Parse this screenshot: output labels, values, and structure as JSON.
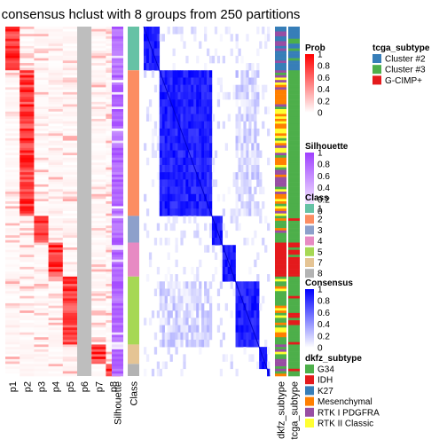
{
  "chart_data": {
    "type": "heatmap",
    "title": "consensus hclust with 8 groups from 250 partitions",
    "n_samples": 144,
    "membership_columns": [
      "p1",
      "p2",
      "p3",
      "p4",
      "p5",
      "p6",
      "p7",
      "p8"
    ],
    "annotation_columns": [
      "Silhouette",
      "Class"
    ],
    "consensus_annotation_columns": [
      "dkfz_subtype",
      "tcga_subtype"
    ],
    "groups": [
      {
        "class": "1",
        "size": 18
      },
      {
        "class": "2",
        "size": 60
      },
      {
        "class": "3",
        "size": 11
      },
      {
        "class": "4",
        "size": 14
      },
      {
        "class": "5",
        "size": 28
      },
      {
        "class": "7",
        "size": 8
      },
      {
        "class": "8",
        "size": 5
      }
    ],
    "legends": {
      "prob": {
        "title": "Prob",
        "ticks": [
          "1",
          "0.8",
          "0.6",
          "0.4",
          "0.2",
          "0"
        ],
        "low": "#ffffff",
        "high": "#ff0000"
      },
      "silhouette": {
        "title": "Silhouette",
        "ticks": [
          "1",
          "0.8",
          "0.6",
          "0.4",
          "0.2",
          "0"
        ],
        "low": "#ffffff",
        "high": "#9f40ff"
      },
      "class": {
        "title": "Class",
        "items": [
          {
            "label": "1",
            "color": "#66C2A5"
          },
          {
            "label": "2",
            "color": "#FC8D62"
          },
          {
            "label": "3",
            "color": "#8DA0CB"
          },
          {
            "label": "4",
            "color": "#E78AC3"
          },
          {
            "label": "5",
            "color": "#A6D854"
          },
          {
            "label": "7",
            "color": "#E5C494"
          },
          {
            "label": "8",
            "color": "#B3B3B3"
          }
        ]
      },
      "consensus": {
        "title": "Consensus",
        "ticks": [
          "1",
          "0.8",
          "0.6",
          "0.4",
          "0.2",
          "0"
        ],
        "low": "#ffffff",
        "high": "#0000ff"
      },
      "tcga_subtype": {
        "title": "tcga_subtype",
        "items": [
          {
            "label": "Cluster #2",
            "color": "#377EB8"
          },
          {
            "label": "Cluster #3",
            "color": "#4DAF4A"
          },
          {
            "label": "G-CIMP+",
            "color": "#E41A1C"
          }
        ]
      },
      "dkfz_subtype": {
        "title": "dkfz_subtype",
        "items": [
          {
            "label": "G34",
            "color": "#4DAF4A"
          },
          {
            "label": "IDH",
            "color": "#E41A1C"
          },
          {
            "label": "K27",
            "color": "#377EB8"
          },
          {
            "label": "Mesenchymal",
            "color": "#FF7F00"
          },
          {
            "label": "RTK I PDGFRA",
            "color": "#984EA3"
          },
          {
            "label": "RTK II Classic",
            "color": "#FFFF33"
          }
        ]
      }
    }
  }
}
